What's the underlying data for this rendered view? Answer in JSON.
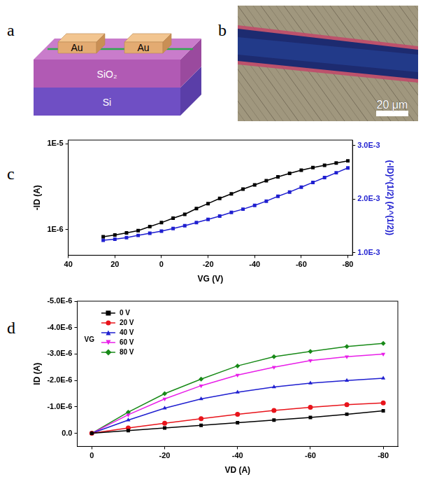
{
  "panels": {
    "a": {
      "label": "a",
      "texts": {
        "pad_left": "Au",
        "pad_right": "Au",
        "oxide": "SiO₂",
        "substrate": "Si"
      }
    },
    "b": {
      "label": "b",
      "scale_bar": "20 μm"
    }
  },
  "chart_data": [
    {
      "panel": "c",
      "type": "line",
      "x_label": "VG (V)",
      "y_label": "-ID (A)",
      "y2_label": "(-ID)^(1/2) (A^(1/2))",
      "x": [
        25,
        20,
        15,
        10,
        5,
        0,
        -5,
        -10,
        -15,
        -20,
        -25,
        -30,
        -35,
        -40,
        -45,
        -50,
        -55,
        -60,
        -65,
        -70,
        -75,
        -80
      ],
      "series": [
        {
          "color": "#000000",
          "marker": "square",
          "values": [
            8.2e-07,
            8.6e-07,
            9.1e-07,
            9.7e-07,
            1.08e-06,
            1.2e-06,
            1.35e-06,
            1.5e-06,
            1.75e-06,
            2e-06,
            2.3e-06,
            2.6e-06,
            2.95e-06,
            3.3e-06,
            3.7e-06,
            4.1e-06,
            4.5e-06,
            4.9e-06,
            5.25e-06,
            5.6e-06,
            5.95e-06,
            6.3e-06
          ]
        },
        {
          "color": "#1f1fd0",
          "marker": "square",
          "axis": "y2",
          "values": [
            0.00123,
            0.00125,
            0.00128,
            0.00132,
            0.00136,
            0.0014,
            0.00145,
            0.0015,
            0.00156,
            0.00162,
            0.00168,
            0.00175,
            0.00181,
            0.00188,
            0.00196,
            0.00205,
            0.00213,
            0.00222,
            0.00231,
            0.0024,
            0.00249,
            0.00258
          ]
        }
      ],
      "xlim": [
        40,
        -82
      ],
      "xticks": [
        40,
        20,
        0,
        -20,
        -40,
        -60,
        -80
      ],
      "log": "y",
      "ylim": [
        5e-07,
        1.1e-05
      ],
      "yticks": [
        {
          "value": 1e-06,
          "label": "1E-6"
        },
        {
          "value": 1e-05,
          "label": "1E-5"
        }
      ],
      "y2lim": [
        0.00095,
        0.0031
      ],
      "y2ticks": [
        {
          "value": 0.001,
          "label": "1.0E-3"
        },
        {
          "value": 0.002,
          "label": "2.0E-3"
        },
        {
          "value": 0.003,
          "label": "3.0E-3"
        }
      ],
      "grid": false
    },
    {
      "panel": "d",
      "type": "line",
      "x_label": "VD (A)",
      "y_label": "ID (A)",
      "legend_title": "VG",
      "x": [
        0,
        -10,
        -20,
        -30,
        -40,
        -50,
        -60,
        -70,
        -80
      ],
      "series": [
        {
          "name": "0 V",
          "color": "#000000",
          "marker": "square",
          "values": [
            0,
            -1e-07,
            -2e-07,
            -3e-07,
            -4e-07,
            -5e-07,
            -6e-07,
            -7.2e-07,
            -8.5e-07
          ]
        },
        {
          "name": "20 V",
          "color": "#e8141b",
          "marker": "circle",
          "values": [
            0,
            -2e-07,
            -3.8e-07,
            -5.5e-07,
            -7.2e-07,
            -8.6e-07,
            -9.8e-07,
            -1.08e-06,
            -1.15e-06
          ]
        },
        {
          "name": "40 V",
          "color": "#1f1fd0",
          "marker": "triangle",
          "values": [
            0,
            -5e-07,
            -9.5e-07,
            -1.3e-06,
            -1.55e-06,
            -1.75e-06,
            -1.9e-06,
            -2e-06,
            -2.08e-06
          ]
        },
        {
          "name": "60 V",
          "color": "#e81ee8",
          "marker": "triangle-down",
          "values": [
            0,
            -7e-07,
            -1.3e-06,
            -1.8e-06,
            -2.2e-06,
            -2.5e-06,
            -2.75e-06,
            -2.9e-06,
            -3e-06
          ]
        },
        {
          "name": "80 V",
          "color": "#188a18",
          "marker": "diamond",
          "values": [
            0,
            -8e-07,
            -1.5e-06,
            -2.05e-06,
            -2.55e-06,
            -2.9e-06,
            -3.1e-06,
            -3.28e-06,
            -3.4e-06
          ]
        }
      ],
      "xlim": [
        4,
        -84
      ],
      "xticks": [
        0,
        -20,
        -40,
        -60,
        -80
      ],
      "ylim": [
        5e-07,
        -5e-06
      ],
      "yticks": [
        {
          "value": 0,
          "label": "0.0"
        },
        {
          "value": -1e-06,
          "label": "-1.0E-6"
        },
        {
          "value": -2e-06,
          "label": "-2.0E-6"
        },
        {
          "value": -3e-06,
          "label": "-3.0E-6"
        },
        {
          "value": -4e-06,
          "label": "-4.0E-6"
        },
        {
          "value": -5e-06,
          "label": "-5.0E-6"
        }
      ],
      "grid": false,
      "legend": "top-left"
    }
  ]
}
